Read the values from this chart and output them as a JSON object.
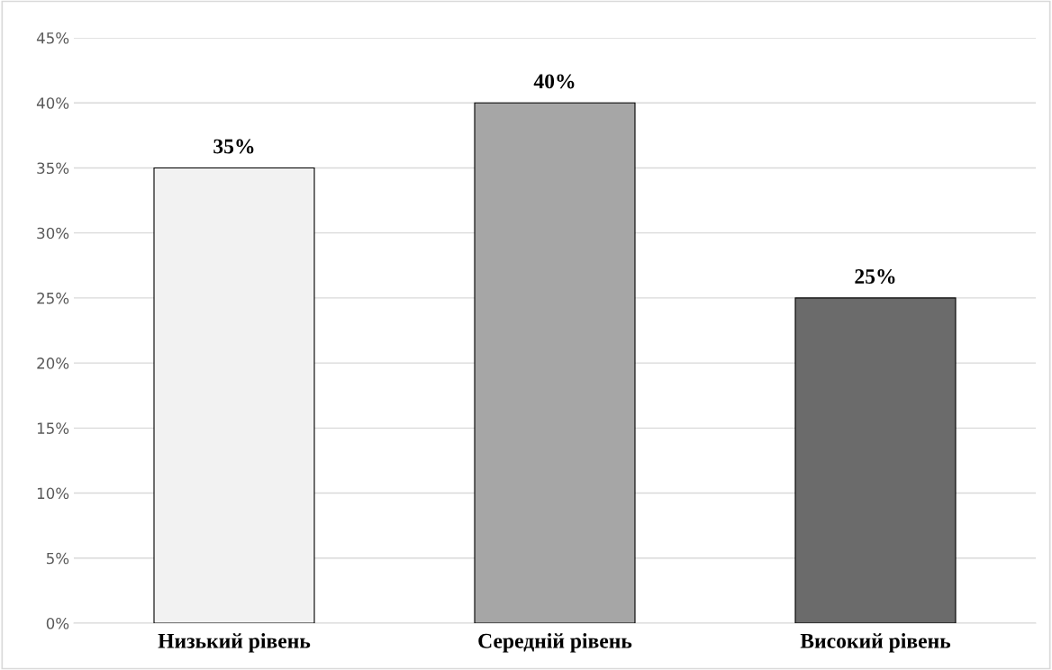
{
  "chart_data": {
    "type": "bar",
    "categories": [
      "Низький рівень",
      "Середній рівень",
      "Високий рівень"
    ],
    "values": [
      35,
      40,
      25
    ],
    "colors": [
      "#f2f2f2",
      "#a6a6a6",
      "#6b6b6b"
    ],
    "value_labels": [
      "35%",
      "40%",
      "25%"
    ],
    "ylim": [
      0,
      45
    ],
    "yticks": [
      {
        "value": 0,
        "label": "0%"
      },
      {
        "value": 5,
        "label": "5%"
      },
      {
        "value": 10,
        "label": "10%"
      },
      {
        "value": 15,
        "label": "15%"
      },
      {
        "value": 20,
        "label": "20%"
      },
      {
        "value": 25,
        "label": "25%"
      },
      {
        "value": 30,
        "label": "30%"
      },
      {
        "value": 35,
        "label": "35%"
      },
      {
        "value": 40,
        "label": "40%"
      },
      {
        "value": 45,
        "label": "45%"
      }
    ],
    "grid": "y"
  }
}
